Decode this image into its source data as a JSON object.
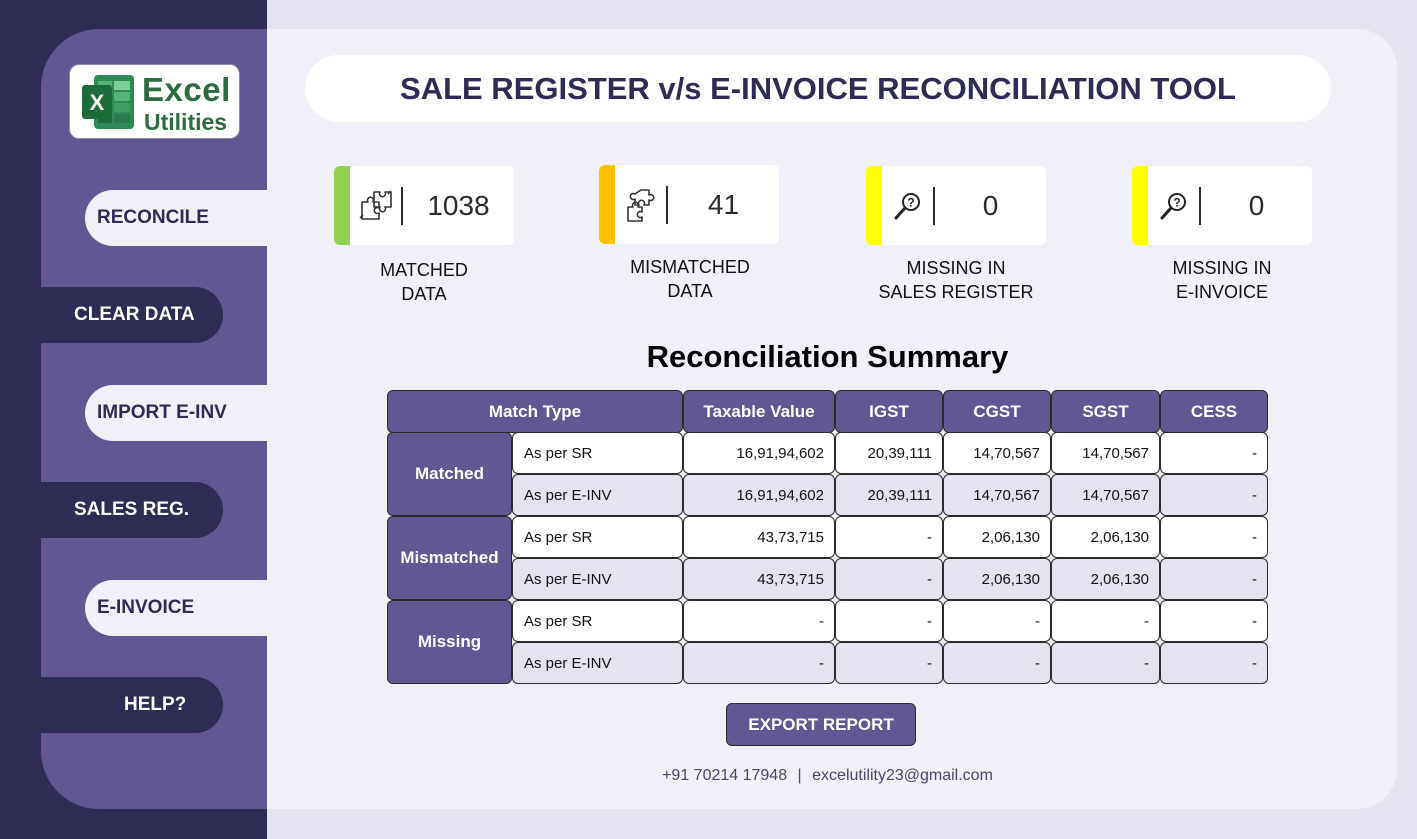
{
  "app": {
    "title": "SALE REGISTER v/s E-INVOICE RECONCILIATION TOOL",
    "logo": {
      "line1": "Excel",
      "line2": "Utilities",
      "badge": "X"
    }
  },
  "sidebar": {
    "items": [
      {
        "label": "RECONCILE",
        "icon": "reconcile"
      },
      {
        "label": "CLEAR DATA"
      },
      {
        "label": "IMPORT E-INV"
      },
      {
        "label": "SALES REG."
      },
      {
        "label": "E-INVOICE"
      },
      {
        "label": "HELP?"
      }
    ]
  },
  "kpis": [
    {
      "value": "1038",
      "label_line1": "MATCHED",
      "label_line2": "DATA",
      "icon": "puzzle-connected-icon",
      "color": "#92d050"
    },
    {
      "value": "41",
      "label_line1": "MISMATCHED",
      "label_line2": "DATA",
      "icon": "puzzle-broken-icon",
      "color": "#ffc000"
    },
    {
      "value": "0",
      "label_line1": "MISSING IN",
      "label_line2": "SALES REGISTER",
      "icon": "search-question-icon",
      "color": "#ffff00"
    },
    {
      "value": "0",
      "label_line1": "MISSING IN",
      "label_line2": "E-INVOICE",
      "icon": "search-question-icon",
      "color": "#ffff00"
    }
  ],
  "summary": {
    "title": "Reconciliation Summary",
    "headers": [
      "Match Type",
      "Taxable Value",
      "IGST",
      "CGST",
      "SGST",
      "CESS"
    ],
    "groups": [
      {
        "name": "Matched",
        "rows": [
          {
            "label": "As per SR",
            "values": [
              "16,91,94,602",
              "20,39,111",
              "14,70,567",
              "14,70,567",
              "-"
            ]
          },
          {
            "label": "As per E-INV",
            "values": [
              "16,91,94,602",
              "20,39,111",
              "14,70,567",
              "14,70,567",
              "-"
            ]
          }
        ]
      },
      {
        "name": "Mismatched",
        "rows": [
          {
            "label": "As per SR",
            "values": [
              "43,73,715",
              "-",
              "2,06,130",
              "2,06,130",
              "-"
            ]
          },
          {
            "label": "As per E-INV",
            "values": [
              "43,73,715",
              "-",
              "2,06,130",
              "2,06,130",
              "-"
            ]
          }
        ]
      },
      {
        "name": "Missing",
        "rows": [
          {
            "label": "As per SR",
            "values": [
              "-",
              "-",
              "-",
              "-",
              "-"
            ]
          },
          {
            "label": "As per E-INV",
            "values": [
              "-",
              "-",
              "-",
              "-",
              "-"
            ]
          }
        ]
      }
    ]
  },
  "export_label": "EXPORT REPORT",
  "footer": {
    "phone": "+91 70214 17948",
    "separator": "|",
    "email": "excelutility23@gmail.com"
  },
  "colors": {
    "primary": "#625793",
    "dark": "#2e2b54",
    "panel": "#f1eff7",
    "row_alt": "#e5e3ef"
  }
}
